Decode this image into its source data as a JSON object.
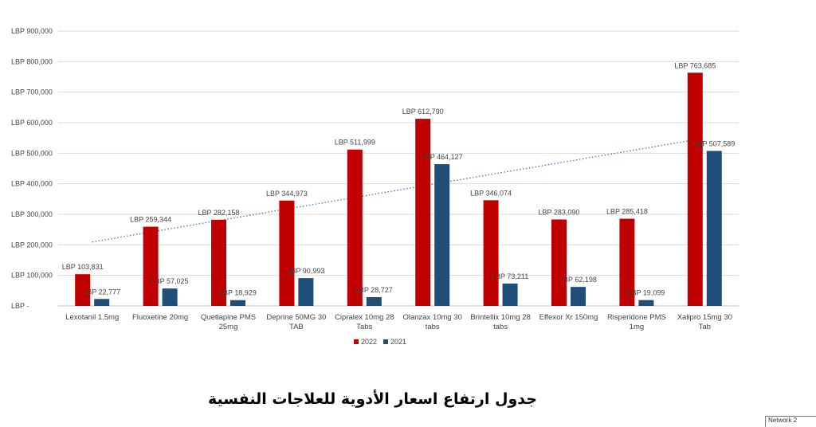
{
  "chart_data": {
    "type": "bar",
    "categories": [
      [
        "Lexotanil 1.5mg"
      ],
      [
        "Fluoxetine 20mg"
      ],
      [
        "Quetiapine PMS",
        "25mg"
      ],
      [
        "Deprine 50MG 30",
        "TAB"
      ],
      [
        "Cipralex 10mg 28",
        "Tabs"
      ],
      [
        "Olanzax 10mg 30",
        "tabs"
      ],
      [
        "Brintellix 10mg 28",
        "tabs"
      ],
      [
        "Effexor Xr 150mg"
      ],
      [
        "Risperidone PMS",
        "1mg"
      ],
      [
        "Xalipro 15mg 30",
        "Tab"
      ]
    ],
    "series": [
      {
        "name": "2022",
        "color": "#c00000",
        "values": [
          103831,
          259344,
          282158,
          344973,
          511999,
          612790,
          346074,
          283090,
          285418,
          763685
        ],
        "labels": [
          "LBP 103,831",
          "LBP 259,344",
          "LBP 282,158",
          "LBP 344,973",
          "LBP 511,999",
          "LBP 612,790",
          "LBP 346,074",
          "LBP 283,090",
          "LBP 285,418",
          "LBP 763,685"
        ]
      },
      {
        "name": "2021",
        "color": "#1f4e79",
        "values": [
          22777,
          57025,
          18929,
          90993,
          28727,
          464127,
          73211,
          62198,
          19099,
          507589
        ],
        "labels": [
          "LBP 22,777",
          "LBP 57,025",
          "LBP 18,929",
          "LBP 90,993",
          "LBP 28,727",
          "LBP 464,127",
          "LBP 73,211",
          "LBP 62,198",
          "LBP 19,099",
          "LBP 507,589"
        ]
      }
    ],
    "ylim": [
      0,
      900000
    ],
    "yticks": [
      {
        "value": 900000,
        "label": "LBP 900,000"
      },
      {
        "value": 800000,
        "label": "LBP 800,000"
      },
      {
        "value": 700000,
        "label": "LBP 700,000"
      },
      {
        "value": 600000,
        "label": "LBP 600,000"
      },
      {
        "value": 500000,
        "label": "LBP 500,000"
      },
      {
        "value": 400000,
        "label": "LBP 400,000"
      },
      {
        "value": 300000,
        "label": "LBP 300,000"
      },
      {
        "value": 200000,
        "label": "LBP 200,000"
      },
      {
        "value": 100000,
        "label": "LBP 100,000"
      },
      {
        "value": 0,
        "label": "LBP -"
      }
    ],
    "trendline": {
      "series": "2022",
      "style": "dotted",
      "color": "#4472c4"
    },
    "grid": true,
    "legend_position": "bottom",
    "title": "",
    "xlabel": "",
    "ylabel": ""
  },
  "caption": "جدول ارتفاع اسعار الأدوية للعلاجات النفسية",
  "corner_box": {
    "text": "Network 2"
  }
}
